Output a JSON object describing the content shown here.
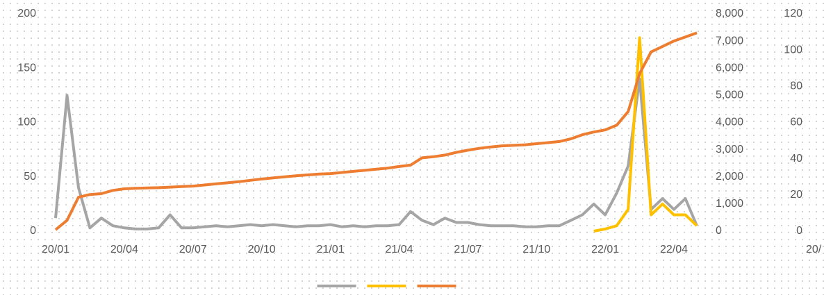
{
  "chart_data": [
    {
      "type": "line",
      "categories": [
        "20/01",
        null,
        null,
        null,
        null,
        null,
        "20/04",
        null,
        null,
        null,
        null,
        null,
        "20/07",
        null,
        null,
        null,
        null,
        null,
        "20/10",
        null,
        null,
        null,
        null,
        null,
        "21/01",
        null,
        null,
        null,
        null,
        null,
        "21/04",
        null,
        null,
        null,
        null,
        null,
        "21/07",
        null,
        null,
        null,
        null,
        null,
        "21/10",
        null,
        null,
        null,
        null,
        null,
        "22/01",
        null,
        null,
        null,
        null,
        null,
        "22/04",
        null,
        null
      ],
      "series": [
        {
          "color": "#a5a5a5",
          "values": [
            12,
            125,
            40,
            3,
            12,
            5,
            3,
            2,
            2,
            3,
            15,
            3,
            3,
            4,
            5,
            4,
            5,
            6,
            5,
            6,
            5,
            4,
            5,
            5,
            6,
            4,
            5,
            4,
            5,
            5,
            6,
            18,
            10,
            6,
            12,
            8,
            8,
            6,
            5,
            5,
            5,
            4,
            4,
            5,
            5,
            10,
            15,
            25,
            15,
            35,
            60,
            140,
            20,
            30,
            20,
            30,
            5
          ]
        },
        {
          "color": "#ffc000",
          "values": [
            null,
            null,
            null,
            null,
            null,
            null,
            null,
            null,
            null,
            null,
            null,
            null,
            null,
            null,
            null,
            null,
            null,
            null,
            null,
            null,
            null,
            null,
            null,
            null,
            null,
            null,
            null,
            null,
            null,
            null,
            null,
            null,
            null,
            null,
            null,
            null,
            null,
            null,
            null,
            null,
            null,
            null,
            null,
            null,
            null,
            null,
            null,
            0,
            2,
            5,
            20,
            178,
            15,
            25,
            15,
            15,
            5
          ]
        },
        {
          "color": "#ed7d31",
          "axis": "y2",
          "values": [
            50,
            400,
            1250,
            1350,
            1380,
            1500,
            1560,
            1580,
            1590,
            1600,
            1620,
            1640,
            1660,
            1700,
            1740,
            1780,
            1820,
            1870,
            1920,
            1960,
            2000,
            2040,
            2070,
            2100,
            2120,
            2160,
            2200,
            2240,
            2280,
            2320,
            2380,
            2430,
            2700,
            2740,
            2800,
            2900,
            2980,
            3050,
            3100,
            3140,
            3160,
            3180,
            3220,
            3260,
            3300,
            3400,
            3550,
            3650,
            3730,
            3900,
            4400,
            5800,
            6600,
            6800,
            7000,
            7150,
            7300
          ]
        }
      ],
      "ylim": [
        0,
        200
      ],
      "yticks": [
        0,
        50,
        100,
        150,
        200
      ],
      "y2lim": [
        0,
        8000
      ],
      "y2ticks": [
        0,
        {
          "value": 1000,
          "label": "1,000"
        },
        {
          "value": 2000,
          "label": "2,000"
        },
        {
          "value": 3000,
          "label": "3,000"
        },
        {
          "value": 4000,
          "label": "4,000"
        },
        {
          "value": 5000,
          "label": "5,000"
        },
        {
          "value": 6000,
          "label": "6,000"
        },
        {
          "value": 7000,
          "label": "7,000"
        },
        {
          "value": 8000,
          "label": "8,000"
        }
      ],
      "legend": "bottom"
    },
    {
      "type": "line",
      "categories": [
        "20/"
      ],
      "ylim": [
        0,
        120
      ],
      "yticks": [
        0,
        20,
        40,
        60,
        80,
        100,
        120
      ]
    }
  ]
}
